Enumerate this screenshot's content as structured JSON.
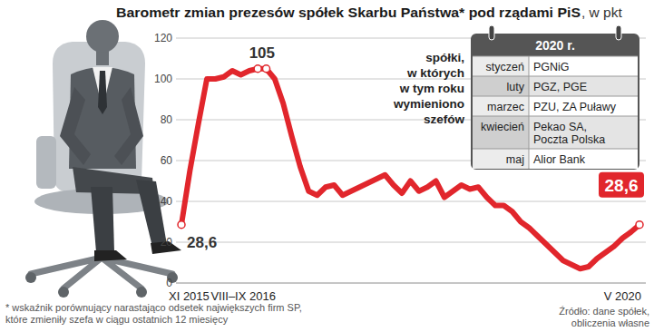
{
  "chart_data": {
    "type": "line",
    "title": "Barometr zmian prezesów spółek Skarbu Państwa* pod rządami PiS",
    "subtitle": ", w pkt",
    "categories": [
      "XI 2015",
      null,
      null,
      null,
      null,
      null,
      null,
      null,
      null,
      "VIII–IX 2016",
      null,
      null,
      null,
      null,
      null,
      null,
      null,
      null,
      null,
      null,
      null,
      null,
      null,
      null,
      null,
      null,
      null,
      null,
      null,
      null,
      null,
      null,
      null,
      null,
      null,
      null,
      null,
      null,
      null,
      null,
      null,
      null,
      null,
      null,
      null,
      null,
      null,
      null,
      null,
      null,
      null,
      null,
      null,
      null,
      "V 2020"
    ],
    "values": [
      28.6,
      55,
      78,
      100,
      100,
      101,
      104,
      102,
      104,
      105,
      105,
      100,
      88,
      72,
      57,
      45,
      43,
      47,
      48,
      43,
      45,
      47,
      49,
      51,
      53,
      48,
      44,
      50,
      45,
      47,
      50,
      42,
      45,
      48,
      46,
      47,
      42,
      38,
      38,
      35,
      30,
      27,
      23,
      19,
      15,
      11,
      9,
      7,
      8,
      12,
      15,
      18,
      22,
      25,
      28.6
    ],
    "value_labels": [
      "28,6",
      null,
      null,
      null,
      null,
      null,
      null,
      null,
      null,
      "105",
      null,
      null,
      null,
      null,
      null,
      null,
      null,
      null,
      null,
      null,
      null,
      null,
      null,
      null,
      null,
      null,
      null,
      null,
      null,
      null,
      null,
      null,
      null,
      null,
      null,
      null,
      null,
      null,
      null,
      null,
      null,
      null,
      null,
      null,
      null,
      null,
      null,
      null,
      null,
      null,
      null,
      null,
      null,
      null,
      "28,6"
    ],
    "color": "#e1262c",
    "ylim": [
      0,
      120
    ],
    "yticks": [
      0,
      20,
      40,
      60,
      80,
      100,
      120
    ],
    "grid": true,
    "footnote": [
      "* wskaźnik porównujący narastająco odsetek największych firm SP,",
      "które zmieniły szefa w ciągu ostatnich 12 miesięcy"
    ],
    "source": [
      "Źródło: dane spółek,",
      "obliczenia własne"
    ]
  },
  "inset": {
    "title": "2020 r.",
    "caption": [
      "spółki,",
      "w których",
      "w tym roku",
      "wymieniono",
      "szefów"
    ],
    "rows": [
      {
        "month": "styczeń",
        "lines": [
          "PGNiG"
        ]
      },
      {
        "month": "luty",
        "lines": [
          "PGZ, PGE"
        ]
      },
      {
        "month": "marzec",
        "lines": [
          "PZU, ZA Puławy"
        ]
      },
      {
        "month": "kwiecień",
        "lines": [
          "Pekao SA,",
          "Poczta Polska"
        ]
      },
      {
        "month": "maj",
        "lines": [
          "Alior Bank"
        ]
      }
    ]
  }
}
